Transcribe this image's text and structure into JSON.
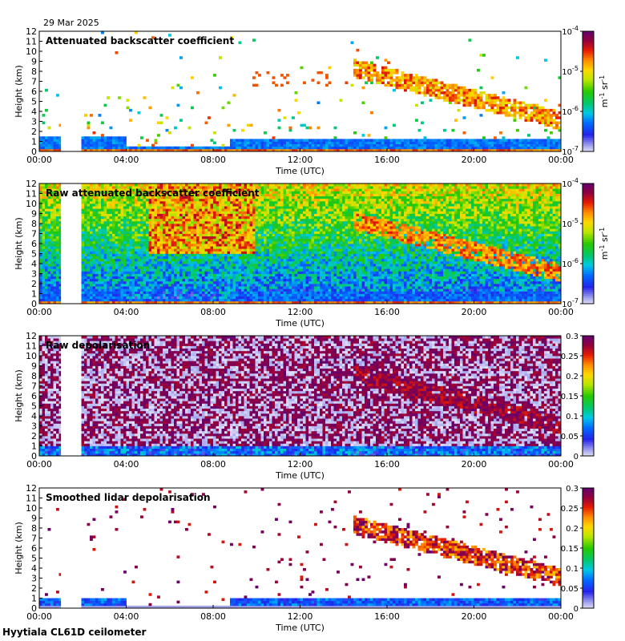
{
  "header": {
    "date": "29 Mar 2025"
  },
  "footer": {
    "instrument": "Hyytiala CL61D ceilometer"
  },
  "chart_data": [
    {
      "type": "heatmap",
      "title": "Attenuated backscatter coefficient",
      "xlabel": "Time (UTC)",
      "ylabel": "Height (km)",
      "xticks": [
        "00:00",
        "04:00",
        "08:00",
        "12:00",
        "16:00",
        "20:00",
        "00:00"
      ],
      "xlim_hours": [
        0,
        24
      ],
      "yticks": [
        0,
        1,
        2,
        3,
        4,
        5,
        6,
        7,
        8,
        9,
        10,
        11,
        12
      ],
      "ylim_km": [
        0,
        12
      ],
      "data_gap_hours": [
        1.0,
        1.9
      ],
      "colorbar": {
        "scale": "log",
        "range": [
          1e-07,
          0.0001
        ],
        "tick_labels": [
          "10-4",
          "10-5",
          "10-6",
          "10-7"
        ],
        "unit": "m-1 sr-1"
      },
      "field": "att_backscatter"
    },
    {
      "type": "heatmap",
      "title": "Raw attenuated backscatter coefficient",
      "xlabel": "Time (UTC)",
      "ylabel": "Height (km)",
      "xticks": [
        "00:00",
        "04:00",
        "08:00",
        "12:00",
        "16:00",
        "20:00",
        "00:00"
      ],
      "xlim_hours": [
        0,
        24
      ],
      "yticks": [
        0,
        1,
        2,
        3,
        4,
        5,
        6,
        7,
        8,
        9,
        10,
        11,
        12
      ],
      "ylim_km": [
        0,
        12
      ],
      "data_gap_hours": [
        1.0,
        1.9
      ],
      "colorbar": {
        "scale": "log",
        "range": [
          1e-07,
          0.0001
        ],
        "tick_labels": [
          "10-4",
          "10-5",
          "10-6",
          "10-7"
        ],
        "unit": "m-1 sr-1"
      },
      "field": "raw_backscatter"
    },
    {
      "type": "heatmap",
      "title": "Raw depolarisation",
      "xlabel": "Time (UTC)",
      "ylabel": "Height (km)",
      "xticks": [
        "00:00",
        "04:00",
        "08:00",
        "12:00",
        "16:00",
        "20:00",
        "00:00"
      ],
      "xlim_hours": [
        0,
        24
      ],
      "yticks": [
        0,
        1,
        2,
        3,
        4,
        5,
        6,
        7,
        8,
        9,
        10,
        11,
        12
      ],
      "ylim_km": [
        0,
        12
      ],
      "data_gap_hours": [
        1.0,
        1.9
      ],
      "colorbar": {
        "scale": "linear",
        "range": [
          0,
          0.3
        ],
        "tick_labels": [
          "0.3",
          "0.25",
          "0.2",
          "0.15",
          "0.1",
          "0.05",
          "0"
        ]
      },
      "field": "raw_depol"
    },
    {
      "type": "heatmap",
      "title": "Smoothed lidar depolarisation",
      "xlabel": "Time (UTC)",
      "ylabel": "Height (km)",
      "xticks": [
        "00:00",
        "04:00",
        "08:00",
        "12:00",
        "16:00",
        "20:00",
        "00:00"
      ],
      "xlim_hours": [
        0,
        24
      ],
      "yticks": [
        0,
        1,
        2,
        3,
        4,
        5,
        6,
        7,
        8,
        9,
        10,
        11,
        12
      ],
      "ylim_km": [
        0,
        12
      ],
      "data_gap_hours": [
        1.0,
        1.9
      ],
      "colorbar": {
        "scale": "linear",
        "range": [
          0,
          0.3
        ],
        "tick_labels": [
          "0.3",
          "0.25",
          "0.2",
          "0.15",
          "0.1",
          "0.05",
          "0"
        ]
      },
      "field": "smoothed_depol"
    }
  ]
}
